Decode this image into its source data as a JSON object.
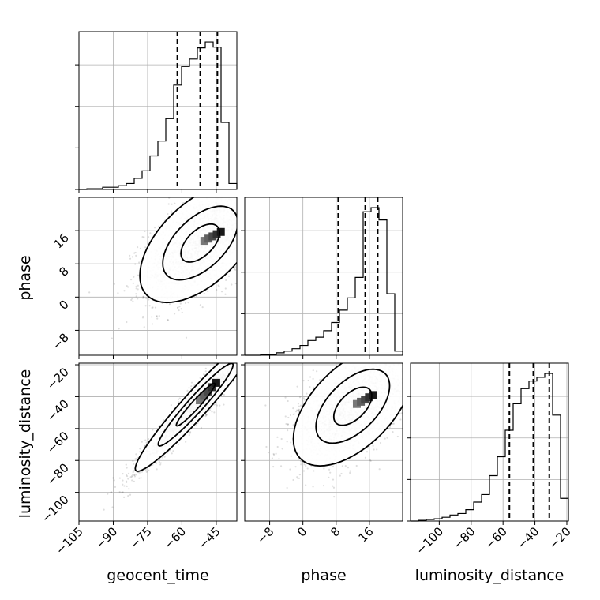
{
  "chart_data": {
    "type": "corner",
    "parameters": [
      "geocent_time",
      "phase",
      "luminosity_distance"
    ],
    "axes": {
      "geocent_time": {
        "range": [
          -105,
          -36
        ],
        "ticks": [
          -105,
          -90,
          -75,
          -60,
          -45
        ],
        "tick_labels": [
          "−105",
          "−90",
          "−75",
          "−60",
          "−45"
        ],
        "label": "geocent_time"
      },
      "phase": {
        "range": [
          -14,
          24
        ],
        "ticks": [
          -8,
          0,
          8,
          16
        ],
        "tick_labels": [
          "−8",
          "0",
          "8",
          "16"
        ],
        "label": "phase"
      },
      "luminosity_distance": {
        "range": [
          -118,
          -19
        ],
        "ticks": [
          -100,
          -80,
          -60,
          -40,
          -20
        ],
        "tick_labels": [
          "−100",
          "−80",
          "−60",
          "−40",
          "−20"
        ],
        "label": "luminosity_distance"
      }
    },
    "histograms": {
      "geocent_time": {
        "bin_edges": [
          -105,
          -101.55,
          -98.1,
          -94.65,
          -91.2,
          -87.75,
          -84.3,
          -80.85,
          -77.4,
          -73.95,
          -70.5,
          -67.05,
          -63.6,
          -60.15,
          -56.7,
          -53.25,
          -49.8,
          -46.35,
          -42.9,
          -39.45,
          -36
        ],
        "counts": [
          0,
          1,
          1,
          3,
          3,
          5,
          8,
          15,
          25,
          45,
          65,
          95,
          140,
          165,
          175,
          190,
          198,
          191,
          90,
          8
        ],
        "quantiles": [
          -62,
          -52,
          -44.5
        ]
      },
      "phase": {
        "bin_edges": [
          -14,
          -12.1,
          -10.2,
          -8.3,
          -6.4,
          -4.5,
          -2.6,
          -0.7,
          1.2,
          3.1,
          5.0,
          6.9,
          8.8,
          10.7,
          12.6,
          14.5,
          16.4,
          18.3,
          20.2,
          22.1,
          24
        ],
        "counts": [
          0,
          0,
          1,
          1,
          3,
          5,
          8,
          12,
          18,
          22,
          30,
          40,
          55,
          70,
          95,
          175,
          180,
          165,
          75,
          5
        ],
        "quantiles": [
          8.5,
          15,
          18
        ]
      },
      "luminosity_distance": {
        "bin_edges": [
          -118,
          -113.05,
          -108.1,
          -103.15,
          -98.2,
          -93.25,
          -88.3,
          -83.35,
          -78.4,
          -73.45,
          -68.5,
          -63.55,
          -58.6,
          -53.65,
          -48.7,
          -43.75,
          -38.8,
          -33.85,
          -28.9,
          -23.95,
          -19
        ],
        "counts": [
          0,
          1,
          2,
          3,
          5,
          8,
          10,
          15,
          25,
          35,
          60,
          85,
          120,
          155,
          175,
          185,
          190,
          195,
          140,
          30
        ],
        "quantiles": [
          -56,
          -41,
          -31
        ]
      }
    },
    "pairs": [
      {
        "x": "geocent_time",
        "y": "phase",
        "mean": [
          -52,
          13
        ],
        "sd": [
          12,
          6.5
        ],
        "rho": 0.55,
        "contour_scales": [
          1.0,
          0.62,
          0.32
        ]
      },
      {
        "x": "geocent_time",
        "y": "luminosity_distance",
        "mean": [
          -54,
          -45
        ],
        "sd": [
          12,
          19
        ],
        "rho": 0.96,
        "contour_scales": [
          1.0,
          0.62,
          0.32
        ]
      },
      {
        "x": "phase",
        "y": "luminosity_distance",
        "mean": [
          12,
          -46
        ],
        "sd": [
          6.5,
          17
        ],
        "rho": 0.55,
        "contour_scales": [
          1.0,
          0.62,
          0.32
        ]
      }
    ],
    "grid": true
  }
}
